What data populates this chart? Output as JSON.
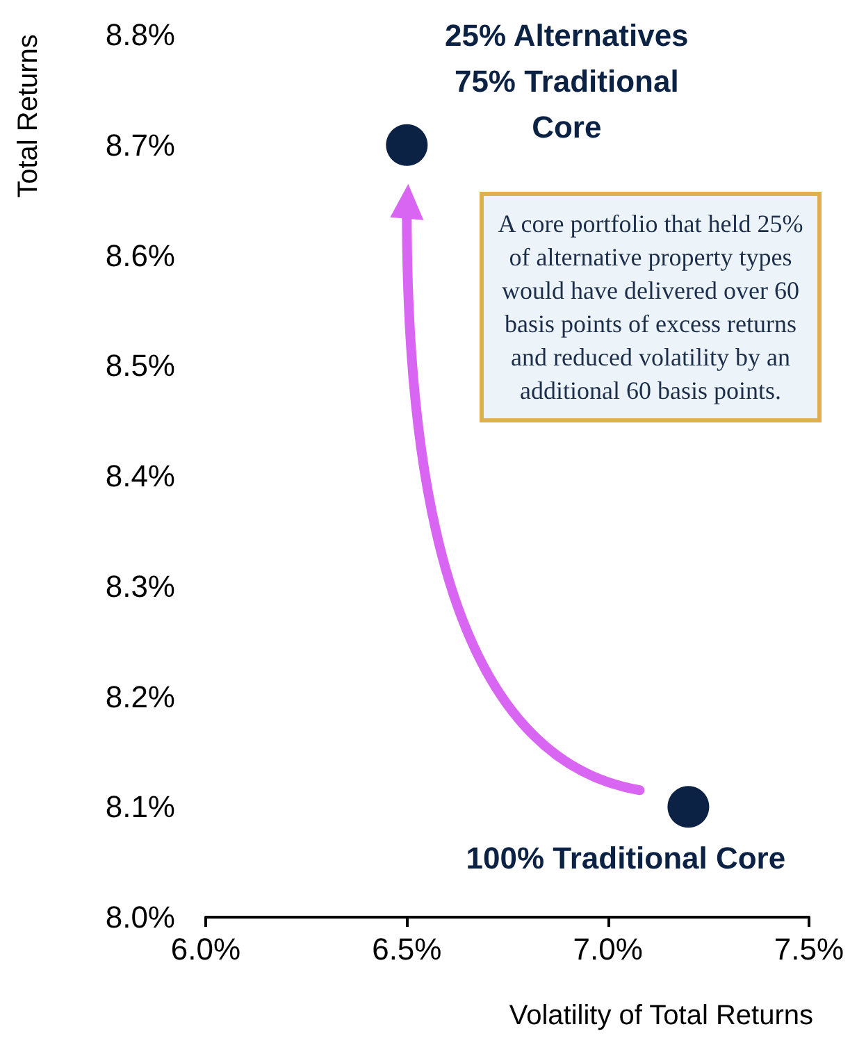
{
  "chart_data": {
    "type": "scatter",
    "xlabel": "Volatility of Total Returns",
    "ylabel": "Total Returns",
    "x": [
      6.5,
      7.2
    ],
    "series": [
      {
        "color": "#0c2244",
        "values": [
          8.7,
          8.1
        ]
      }
    ],
    "xlim": [
      6.0,
      7.5
    ],
    "xticks": [
      {
        "value": 6.0,
        "label": "6.0%"
      },
      {
        "value": 6.5,
        "label": "6.5%"
      },
      {
        "value": 7.0,
        "label": "7.0%"
      },
      {
        "value": 7.5,
        "label": "7.5%"
      }
    ],
    "ylim": [
      8.0,
      8.8
    ],
    "yticks": [
      {
        "value": 8.0,
        "label": "8.0%"
      },
      {
        "value": 8.1,
        "label": "8.1%"
      },
      {
        "value": 8.2,
        "label": "8.2%"
      },
      {
        "value": 8.3,
        "label": "8.3%"
      },
      {
        "value": 8.4,
        "label": "8.4%"
      },
      {
        "value": 8.5,
        "label": "8.5%"
      },
      {
        "value": 8.6,
        "label": "8.6%"
      },
      {
        "value": 8.7,
        "label": "8.7%"
      },
      {
        "value": 8.8,
        "label": "8.8%"
      }
    ],
    "marker": "circle",
    "annotations": [
      {
        "text": "25% Alternatives\n75% Traditional\nCore",
        "x": 6.5,
        "y": 8.7
      },
      {
        "text": "100% Traditional Core",
        "x": 7.2,
        "y": 8.1
      },
      "A core portfolio that held 25% of alternative property types would have delivered over 60 basis points of excess returns and reduced volatility by an additional 60 basis points."
    ]
  }
}
